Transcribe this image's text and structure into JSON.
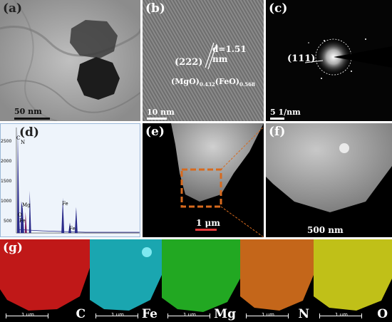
{
  "panels": {
    "a": {
      "label": "(a)",
      "scale": "50 nm"
    },
    "b": {
      "label": "(b)",
      "scale": "10 nm",
      "plane": "(222)",
      "dspacing": "d=1.51 nm",
      "formula_prefix": "(MgO)",
      "sub1": "0.432",
      "formula_mid": "(FeO)",
      "sub2": "0.568"
    },
    "c": {
      "label": "(c)",
      "scale": "5  1/nm",
      "ring": "(111)"
    },
    "d": {
      "label": "(d)",
      "ticks": [
        "2500",
        "2000",
        "1500",
        "1000",
        "500"
      ],
      "peaks": {
        "c": "C",
        "n": "N",
        "o": "O",
        "mg": "Mg",
        "fe_low": "Fe",
        "fe1": "Fe",
        "fe2": "Fe"
      }
    },
    "e": {
      "label": "(e)",
      "scale": "1 μm"
    },
    "f": {
      "label": "(f)",
      "scale": "500 nm"
    },
    "g": {
      "label": "(g)",
      "scale": "1 um",
      "maps": [
        {
          "element": "C",
          "color": "#c01818"
        },
        {
          "element": "Fe",
          "color": "#1aa6b0"
        },
        {
          "element": "Mg",
          "color": "#22a822"
        },
        {
          "element": "N",
          "color": "#c4661a"
        },
        {
          "element": "O",
          "color": "#c0c018"
        }
      ]
    }
  }
}
